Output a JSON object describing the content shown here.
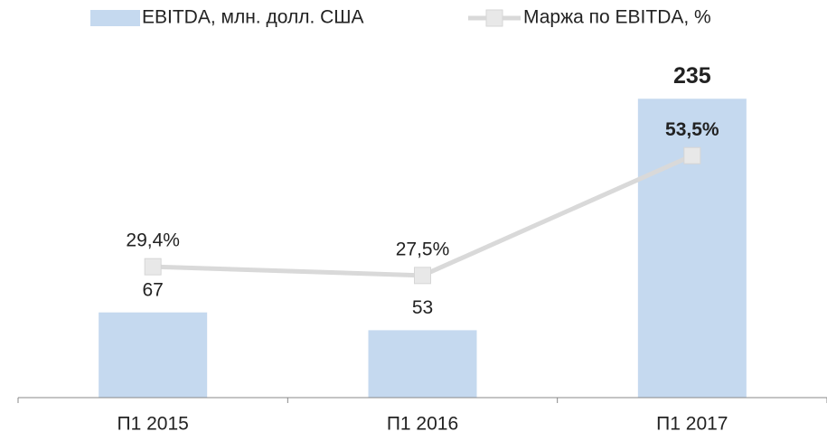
{
  "chart_data": {
    "type": "bar-line",
    "categories": [
      "П1 2015",
      "П1 2016",
      "П1 2017"
    ],
    "series": [
      {
        "name": "EBITDA, млн. долл. США",
        "color": "#c5d9ef",
        "values": [
          67,
          53,
          235
        ]
      },
      {
        "name": "Маржа по EBITDA, %",
        "color": "#d9d9d9",
        "axis": "y2",
        "values": [
          29.4,
          27.5,
          53.5
        ],
        "value_labels": [
          "29,4%",
          "27,5%",
          "53,5%"
        ]
      }
    ],
    "ylim": [
      0,
      270
    ],
    "y2lim": [
      1,
      75.5
    ],
    "legend": "top"
  }
}
